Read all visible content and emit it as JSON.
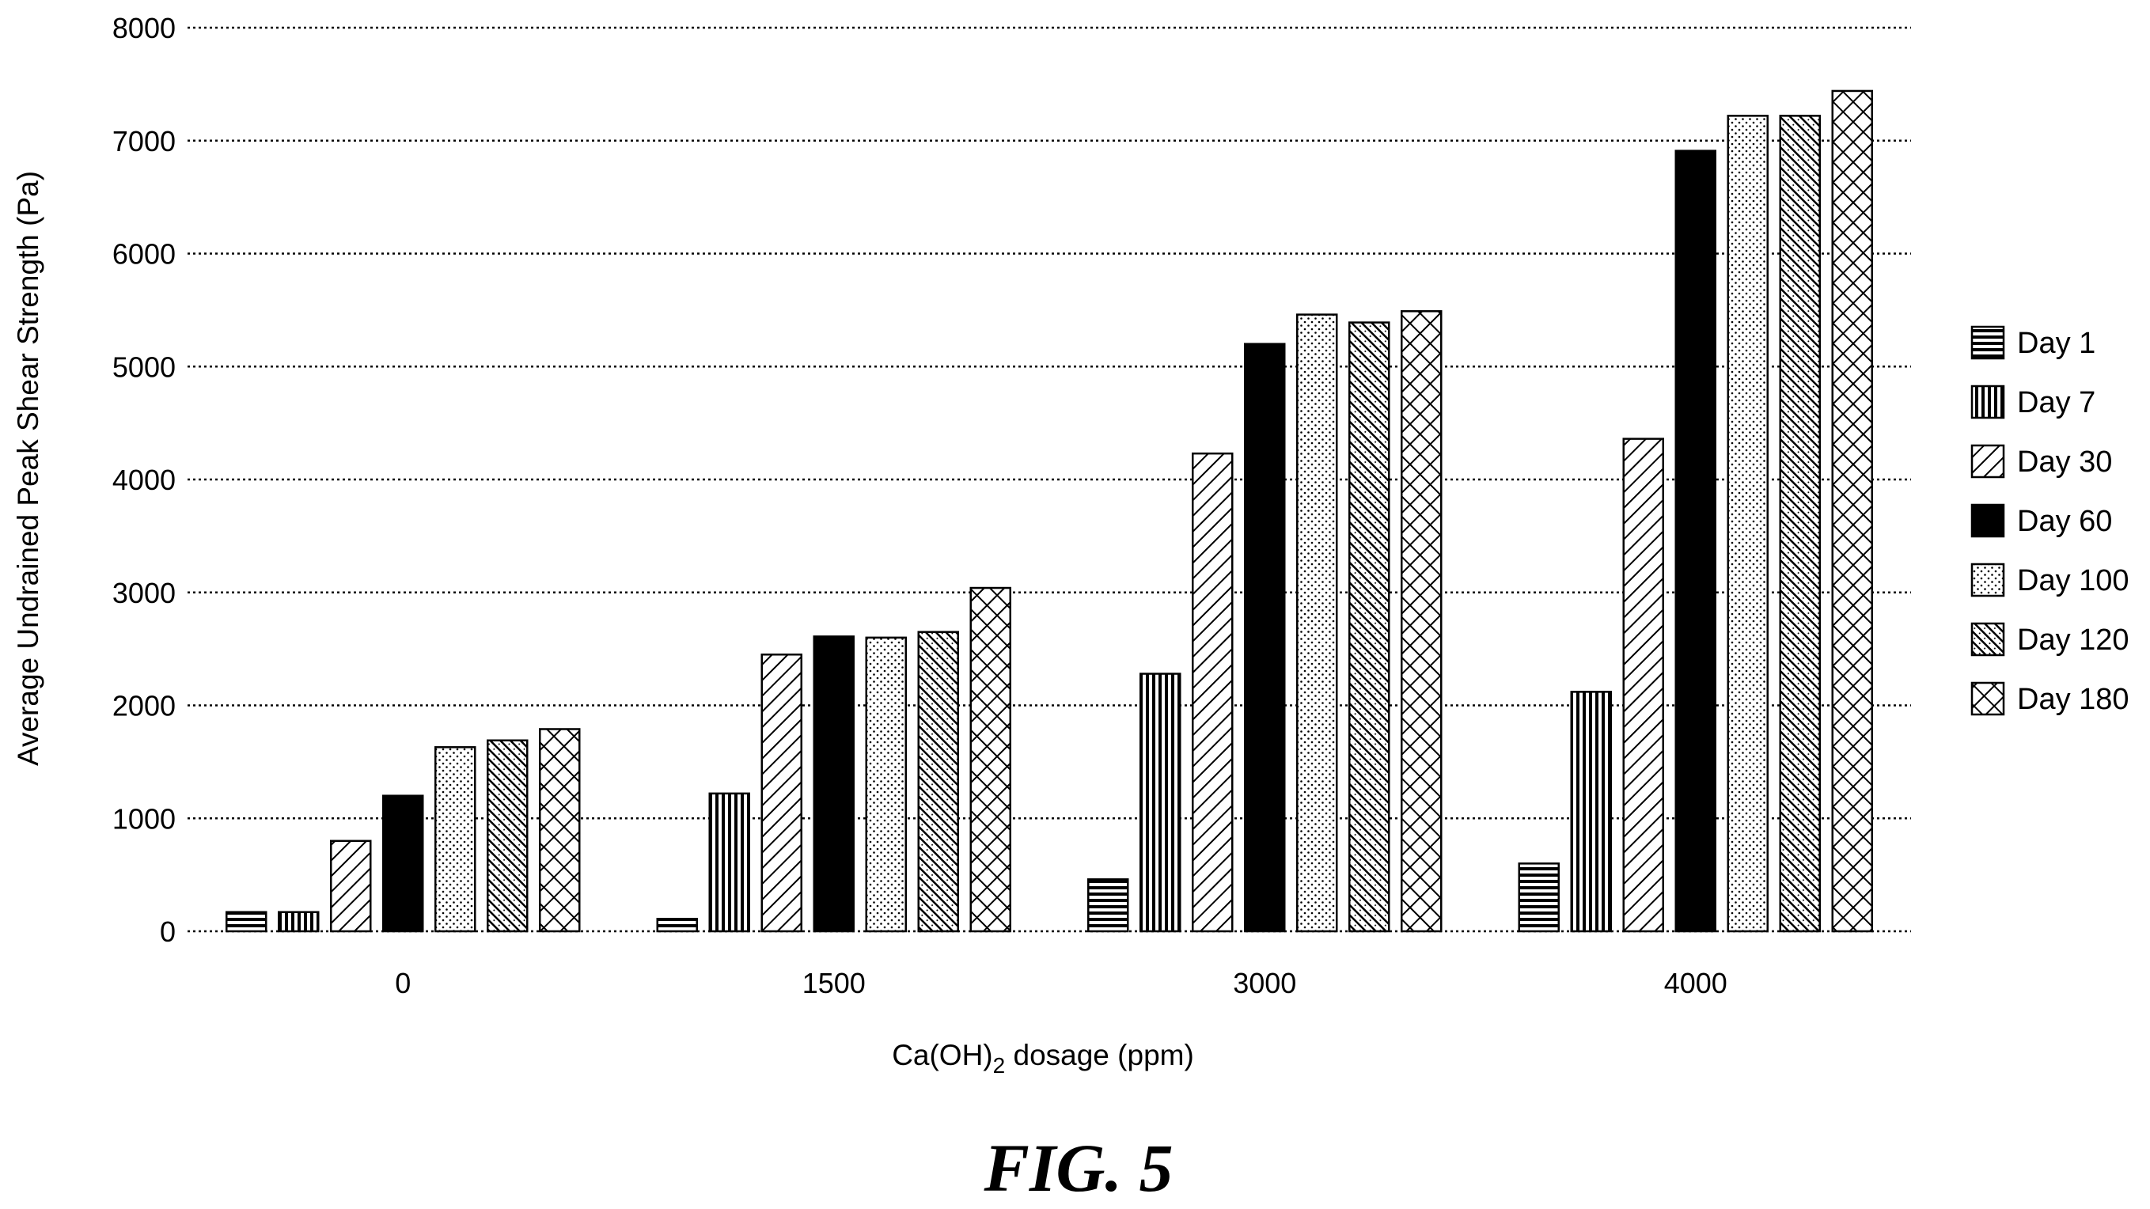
{
  "chart_data": {
    "type": "bar",
    "ylabel": "Average Undrained Peak Shear Strength (Pa)",
    "xlabel": {
      "prefix": "Ca(OH)",
      "subscript": "2",
      "suffix": " dosage (ppm)"
    },
    "ylim": [
      0,
      8000
    ],
    "yticks": [
      0,
      1000,
      2000,
      3000,
      4000,
      5000,
      6000,
      7000,
      8000
    ],
    "grid": "horizontal dotted",
    "legend_position": "right",
    "categories": [
      "0",
      "1500",
      "3000",
      "4000"
    ],
    "series": [
      {
        "name": "Day 1",
        "pattern": "horizontal-lines",
        "values": [
          170,
          110,
          460,
          600
        ]
      },
      {
        "name": "Day 7",
        "pattern": "vertical-lines",
        "values": [
          170,
          1220,
          2280,
          2120
        ]
      },
      {
        "name": "Day 30",
        "pattern": "diagonal-lines",
        "values": [
          800,
          2450,
          4230,
          4360
        ]
      },
      {
        "name": "Day 60",
        "pattern": "solid-black",
        "values": [
          1200,
          2610,
          5200,
          6910
        ]
      },
      {
        "name": "Day 100",
        "pattern": "dots",
        "values": [
          1630,
          2600,
          5460,
          7220
        ]
      },
      {
        "name": "Day 120",
        "pattern": "dense-diagonal",
        "values": [
          1690,
          2650,
          5390,
          7220
        ]
      },
      {
        "name": "Day 180",
        "pattern": "crosshatch",
        "values": [
          1790,
          3040,
          5490,
          7440
        ]
      }
    ]
  },
  "caption": "FIG. 5"
}
